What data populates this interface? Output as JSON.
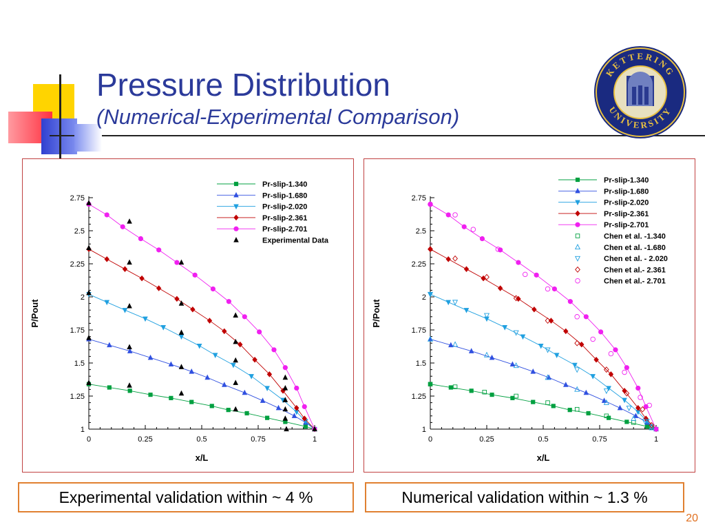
{
  "slide": {
    "title": "Pressure Distribution",
    "subtitle": "(Numerical-Experimental Comparison)",
    "page_number": "20",
    "logo_text": "KETTERING UNIVERSITY",
    "caption_left": "Experimental validation within ~ 4 %",
    "caption_right": "Numerical validation within ~ 1.3 %"
  },
  "chart_data": [
    {
      "type": "line",
      "title": "",
      "xlabel": "x/L",
      "ylabel": "P/Pout",
      "xlim": [
        0,
        1
      ],
      "ylim": [
        1,
        2.75
      ],
      "xticks": [
        "0",
        "0.25",
        "0.5",
        "0.75",
        "1"
      ],
      "yticks": [
        "1",
        "1.25",
        "1.5",
        "1.75",
        "2",
        "2.25",
        "2.5",
        "2.75"
      ],
      "legend_position": "top-right",
      "series": [
        {
          "name": "Pr-slip-1.340",
          "color": "#00a040",
          "marker": "square",
          "x": [
            0,
            0.091,
            0.182,
            0.273,
            0.364,
            0.455,
            0.545,
            0.618,
            0.7,
            0.79,
            0.87,
            0.96,
            1
          ],
          "y": [
            1.34,
            1.315,
            1.29,
            1.26,
            1.235,
            1.205,
            1.175,
            1.145,
            1.12,
            1.085,
            1.055,
            1.02,
            1
          ]
        },
        {
          "name": "Pr-slip-1.680",
          "color": "#3050e0",
          "marker": "triangle-up",
          "x": [
            0,
            0.091,
            0.182,
            0.273,
            0.364,
            0.455,
            0.525,
            0.6,
            0.69,
            0.77,
            0.84,
            0.91,
            0.96,
            1
          ],
          "y": [
            1.68,
            1.635,
            1.59,
            1.54,
            1.49,
            1.435,
            1.39,
            1.335,
            1.275,
            1.215,
            1.16,
            1.1,
            1.05,
            1
          ]
        },
        {
          "name": "Pr-slip-2.020",
          "color": "#20a0e0",
          "marker": "triangle-down",
          "x": [
            0,
            0.08,
            0.16,
            0.25,
            0.33,
            0.41,
            0.49,
            0.56,
            0.64,
            0.72,
            0.79,
            0.86,
            0.92,
            0.96,
            1
          ],
          "y": [
            2.02,
            1.96,
            1.9,
            1.835,
            1.77,
            1.7,
            1.63,
            1.56,
            1.485,
            1.4,
            1.31,
            1.22,
            1.13,
            1.06,
            1
          ]
        },
        {
          "name": "Pr-slip-2.361",
          "color": "#c00000",
          "marker": "diamond",
          "x": [
            0,
            0.08,
            0.16,
            0.235,
            0.31,
            0.39,
            0.46,
            0.535,
            0.6,
            0.67,
            0.735,
            0.8,
            0.86,
            0.92,
            0.955,
            1
          ],
          "y": [
            2.361,
            2.285,
            2.21,
            2.14,
            2.065,
            1.985,
            1.905,
            1.82,
            1.74,
            1.64,
            1.525,
            1.415,
            1.29,
            1.16,
            1.08,
            1
          ]
        },
        {
          "name": "Pr-slip-2.701",
          "color": "#f020f0",
          "marker": "circle",
          "x": [
            0,
            0.08,
            0.15,
            0.23,
            0.31,
            0.39,
            0.47,
            0.55,
            0.62,
            0.69,
            0.755,
            0.82,
            0.87,
            0.92,
            0.955,
            1
          ],
          "y": [
            2.701,
            2.62,
            2.53,
            2.44,
            2.355,
            2.26,
            2.165,
            2.06,
            1.965,
            1.85,
            1.735,
            1.6,
            1.465,
            1.31,
            1.17,
            1
          ]
        }
      ],
      "experimental": {
        "name": "Experimental Data",
        "color": "#000000",
        "marker": "triangle-up",
        "x": [
          0,
          0,
          0,
          0,
          0,
          0.18,
          0.18,
          0.18,
          0.18,
          0.18,
          0.41,
          0.41,
          0.41,
          0.41,
          0.41,
          0.65,
          0.65,
          0.65,
          0.65,
          0.65,
          0.87,
          0.87,
          0.87,
          0.87,
          0.87,
          0.875,
          1
        ],
        "y": [
          1.35,
          1.69,
          2.03,
          2.37,
          2.71,
          1.33,
          1.62,
          1.93,
          2.26,
          2.57,
          1.27,
          1.47,
          1.73,
          1.95,
          2.26,
          1.15,
          1.35,
          1.52,
          1.66,
          1.86,
          1.08,
          1.22,
          1.31,
          1.39,
          1.15,
          1.0,
          1.0
        ]
      }
    },
    {
      "type": "line",
      "title": "",
      "xlabel": "x/L",
      "ylabel": "P/Pout",
      "xlim": [
        0,
        1
      ],
      "ylim": [
        1,
        2.75
      ],
      "xticks": [
        "0",
        "0.25",
        "0.5",
        "0.75",
        "1"
      ],
      "yticks": [
        "1",
        "1.25",
        "1.5",
        "1.75",
        "2",
        "2.25",
        "2.5",
        "2.75"
      ],
      "legend_position": "top-right",
      "series": [
        {
          "name": "Pr-slip-1.340",
          "color": "#00a040",
          "marker": "square",
          "x": [
            0,
            0.091,
            0.182,
            0.273,
            0.364,
            0.455,
            0.545,
            0.618,
            0.7,
            0.79,
            0.87,
            0.96,
            1
          ],
          "y": [
            1.34,
            1.315,
            1.29,
            1.26,
            1.235,
            1.205,
            1.175,
            1.145,
            1.12,
            1.085,
            1.055,
            1.02,
            1
          ]
        },
        {
          "name": "Pr-slip-1.680",
          "color": "#3050e0",
          "marker": "triangle-up",
          "x": [
            0,
            0.091,
            0.182,
            0.273,
            0.364,
            0.455,
            0.525,
            0.6,
            0.69,
            0.77,
            0.84,
            0.91,
            0.96,
            1
          ],
          "y": [
            1.68,
            1.635,
            1.59,
            1.54,
            1.49,
            1.435,
            1.39,
            1.335,
            1.275,
            1.215,
            1.16,
            1.1,
            1.05,
            1
          ]
        },
        {
          "name": "Pr-slip-2.020",
          "color": "#20a0e0",
          "marker": "triangle-down",
          "x": [
            0,
            0.08,
            0.16,
            0.25,
            0.33,
            0.41,
            0.49,
            0.56,
            0.64,
            0.72,
            0.79,
            0.86,
            0.92,
            0.96,
            1
          ],
          "y": [
            2.02,
            1.96,
            1.9,
            1.835,
            1.77,
            1.7,
            1.63,
            1.56,
            1.485,
            1.4,
            1.31,
            1.22,
            1.13,
            1.06,
            1
          ]
        },
        {
          "name": "Pr-slip-2.361",
          "color": "#c00000",
          "marker": "diamond",
          "x": [
            0,
            0.08,
            0.16,
            0.235,
            0.31,
            0.39,
            0.46,
            0.535,
            0.6,
            0.67,
            0.735,
            0.8,
            0.86,
            0.92,
            0.955,
            1
          ],
          "y": [
            2.361,
            2.285,
            2.21,
            2.14,
            2.065,
            1.985,
            1.905,
            1.82,
            1.74,
            1.64,
            1.525,
            1.415,
            1.29,
            1.16,
            1.08,
            1
          ]
        },
        {
          "name": "Pr-slip-2.701",
          "color": "#f020f0",
          "marker": "circle",
          "x": [
            0,
            0.08,
            0.15,
            0.23,
            0.31,
            0.39,
            0.47,
            0.55,
            0.62,
            0.69,
            0.755,
            0.82,
            0.87,
            0.92,
            0.955,
            1
          ],
          "y": [
            2.701,
            2.62,
            2.53,
            2.44,
            2.355,
            2.26,
            2.165,
            2.06,
            1.965,
            1.85,
            1.735,
            1.6,
            1.465,
            1.31,
            1.17,
            1
          ]
        },
        {
          "name": "Chen et al. -1.340",
          "color": "#00a040",
          "marker": "square-open",
          "x": [
            0,
            0.11,
            0.24,
            0.38,
            0.52,
            0.65,
            0.78,
            0.9,
            0.98
          ],
          "y": [
            1.34,
            1.32,
            1.28,
            1.25,
            1.2,
            1.15,
            1.1,
            1.05,
            1.01
          ]
        },
        {
          "name": "Chen et al. -1.680",
          "color": "#20a0e0",
          "marker": "triangle-up-open",
          "x": [
            0,
            0.11,
            0.25,
            0.38,
            0.52,
            0.65,
            0.78,
            0.9,
            0.98
          ],
          "y": [
            1.68,
            1.64,
            1.56,
            1.48,
            1.39,
            1.3,
            1.2,
            1.08,
            1.01
          ]
        },
        {
          "name": "Chen et al. - 2.020",
          "color": "#20a0e0",
          "marker": "triangle-down-open",
          "x": [
            0,
            0.11,
            0.25,
            0.38,
            0.52,
            0.65,
            0.78,
            0.88,
            0.95,
            0.98
          ],
          "y": [
            2.02,
            1.96,
            1.86,
            1.73,
            1.6,
            1.45,
            1.29,
            1.16,
            1.06,
            1.02
          ]
        },
        {
          "name": "Chen et al.- 2.361",
          "color": "#c00000",
          "marker": "diamond-open",
          "x": [
            0,
            0.11,
            0.25,
            0.38,
            0.52,
            0.65,
            0.78,
            0.87,
            0.94,
            0.98
          ],
          "y": [
            2.361,
            2.29,
            2.15,
            1.99,
            1.82,
            1.65,
            1.45,
            1.27,
            1.15,
            1.03
          ]
        },
        {
          "name": "Chen et al.- 2.701",
          "color": "#f020f0",
          "marker": "circle-open",
          "x": [
            0,
            0.11,
            0.19,
            0.3,
            0.42,
            0.52,
            0.65,
            0.72,
            0.8,
            0.86,
            0.93,
            0.97
          ],
          "y": [
            2.7,
            2.62,
            2.51,
            2.36,
            2.17,
            2.06,
            1.85,
            1.68,
            1.57,
            1.43,
            1.24,
            1.18
          ]
        }
      ]
    }
  ]
}
